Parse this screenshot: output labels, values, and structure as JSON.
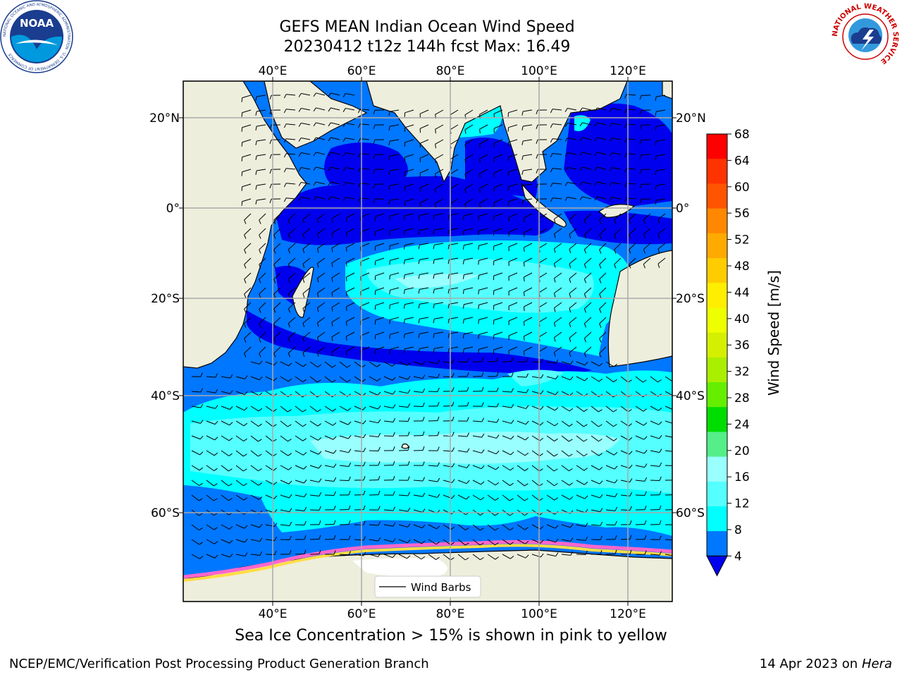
{
  "title": {
    "line1": "GEFS MEAN Indian Ocean Wind Speed",
    "line2": "20230412 t12z 144h fcst   Max: 16.49"
  },
  "map": {
    "lon_ticks": [
      "40°E",
      "60°E",
      "80°E",
      "100°E",
      "120°E"
    ],
    "lat_ticks_left": [
      "20°N",
      "0°",
      "20°S",
      "40°S",
      "60°S"
    ],
    "lat_ticks_right": [
      "20°N",
      "0°",
      "20°S",
      "40°S",
      "60°S"
    ],
    "legend_label": "Wind Barbs"
  },
  "colorbar": {
    "label": "Wind Speed [m/s]",
    "ticks": [
      "68",
      "64",
      "60",
      "56",
      "52",
      "48",
      "44",
      "40",
      "36",
      "32",
      "28",
      "24",
      "20",
      "16",
      "12",
      "8",
      "4"
    ],
    "colors": [
      "#ff0000",
      "#ff3300",
      "#ff5500",
      "#ff8800",
      "#ffaa00",
      "#ffcc00",
      "#ffee00",
      "#eeff00",
      "#d4f000",
      "#aaee00",
      "#66ee00",
      "#00dd00",
      "#55ee88",
      "#99ffff",
      "#55ffff",
      "#00ffff",
      "#0077ff"
    ],
    "under_color": "#0000ee"
  },
  "palette": {
    "land": "#eeeedd",
    "ice_pink": "#ff66cc",
    "ice_yellow": "#ffdd44"
  },
  "ice_note": "Sea Ice Concentration > 15% is shown in pink to yellow",
  "footer": {
    "left": "NCEP/EMC/Verification Post Processing Product Generation Branch",
    "right_prefix": "14 Apr 2023 on ",
    "right_italic": "Hera"
  },
  "logos": {
    "noaa_text": "NOAA",
    "noaa_ring_text": "NATIONAL OCEANIC AND ATMOSPHERIC ADMINISTRATION · U.S. DEPARTMENT OF COMMERCE",
    "nws_ring_text": "NATIONAL WEATHER SERVICE"
  }
}
